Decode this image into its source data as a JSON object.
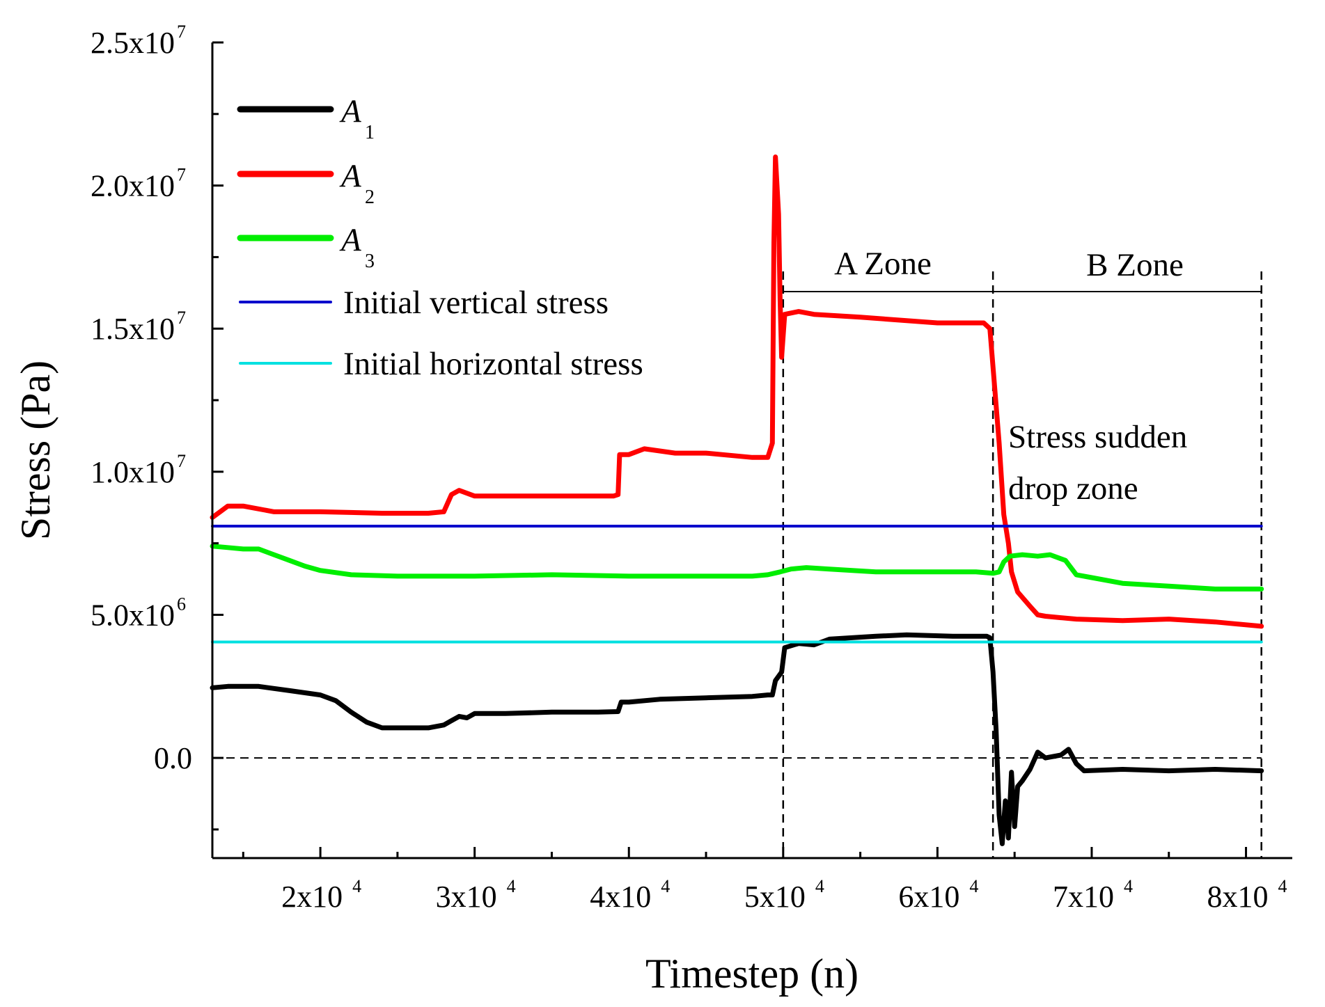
{
  "chart_data": {
    "type": "line",
    "xlabel": "Timestep (n)",
    "ylabel": "Stress (Pa)",
    "xlim": [
      13000,
      83000
    ],
    "ylim": [
      -3500000,
      25000000
    ],
    "x_ticks": [
      {
        "value": 20000,
        "mantissa": "2x10",
        "exp": "4"
      },
      {
        "value": 30000,
        "mantissa": "3x10",
        "exp": "4"
      },
      {
        "value": 40000,
        "mantissa": "4x10",
        "exp": "4"
      },
      {
        "value": 50000,
        "mantissa": "5x10",
        "exp": "4"
      },
      {
        "value": 60000,
        "mantissa": "6x10",
        "exp": "4"
      },
      {
        "value": 70000,
        "mantissa": "7x10",
        "exp": "4"
      },
      {
        "value": 80000,
        "mantissa": "8x10",
        "exp": "4"
      }
    ],
    "y_ticks": [
      {
        "value": 0,
        "mantissa": "0.0",
        "exp": ""
      },
      {
        "value": 5000000,
        "mantissa": "5.0x10",
        "exp": "6"
      },
      {
        "value": 10000000,
        "mantissa": "1.0x10",
        "exp": "7"
      },
      {
        "value": 15000000,
        "mantissa": "1.5x10",
        "exp": "7"
      },
      {
        "value": 20000000,
        "mantissa": "2.0x10",
        "exp": "7"
      },
      {
        "value": 25000000,
        "mantissa": "2.5x10",
        "exp": "7"
      }
    ],
    "series": [
      {
        "name": "A1",
        "label": "A",
        "sub": "1",
        "color": "#000000",
        "points": [
          [
            13000,
            2450000
          ],
          [
            14000,
            2500000
          ],
          [
            16000,
            2500000
          ],
          [
            18000,
            2350000
          ],
          [
            20000,
            2200000
          ],
          [
            21000,
            2000000
          ],
          [
            22000,
            1600000
          ],
          [
            23000,
            1250000
          ],
          [
            24000,
            1050000
          ],
          [
            25000,
            1050000
          ],
          [
            27000,
            1050000
          ],
          [
            28000,
            1150000
          ],
          [
            28500,
            1300000
          ],
          [
            29000,
            1450000
          ],
          [
            29500,
            1400000
          ],
          [
            30000,
            1550000
          ],
          [
            32000,
            1550000
          ],
          [
            35000,
            1600000
          ],
          [
            38000,
            1600000
          ],
          [
            39300,
            1620000
          ],
          [
            39500,
            1950000
          ],
          [
            40000,
            1950000
          ],
          [
            42000,
            2050000
          ],
          [
            45000,
            2100000
          ],
          [
            48000,
            2150000
          ],
          [
            49000,
            2200000
          ],
          [
            49300,
            2200000
          ],
          [
            49500,
            2700000
          ],
          [
            49900,
            3000000
          ],
          [
            50100,
            3850000
          ],
          [
            51000,
            4000000
          ],
          [
            52000,
            3950000
          ],
          [
            53000,
            4150000
          ],
          [
            56000,
            4250000
          ],
          [
            58000,
            4300000
          ],
          [
            61000,
            4250000
          ],
          [
            63200,
            4250000
          ],
          [
            63400,
            4200000
          ],
          [
            63600,
            3000000
          ],
          [
            63800,
            1000000
          ],
          [
            64000,
            -2000000
          ],
          [
            64200,
            -3000000
          ],
          [
            64400,
            -1500000
          ],
          [
            64600,
            -2800000
          ],
          [
            64800,
            -500000
          ],
          [
            65000,
            -2400000
          ],
          [
            65200,
            -1000000
          ],
          [
            65500,
            -800000
          ],
          [
            66000,
            -400000
          ],
          [
            66500,
            200000
          ],
          [
            67000,
            0
          ],
          [
            68000,
            100000
          ],
          [
            68500,
            300000
          ],
          [
            69000,
            -200000
          ],
          [
            69500,
            -450000
          ],
          [
            72000,
            -400000
          ],
          [
            75000,
            -450000
          ],
          [
            78000,
            -400000
          ],
          [
            81000,
            -450000
          ]
        ]
      },
      {
        "name": "A2",
        "label": "A",
        "sub": "2",
        "color": "#ff0000",
        "points": [
          [
            13000,
            8400000
          ],
          [
            13500,
            8600000
          ],
          [
            14000,
            8800000
          ],
          [
            15000,
            8800000
          ],
          [
            17000,
            8600000
          ],
          [
            20000,
            8600000
          ],
          [
            24000,
            8550000
          ],
          [
            27000,
            8550000
          ],
          [
            28000,
            8600000
          ],
          [
            28500,
            9200000
          ],
          [
            29000,
            9350000
          ],
          [
            30000,
            9150000
          ],
          [
            35000,
            9150000
          ],
          [
            39000,
            9150000
          ],
          [
            39300,
            9200000
          ],
          [
            39400,
            10600000
          ],
          [
            40000,
            10600000
          ],
          [
            41000,
            10800000
          ],
          [
            43000,
            10650000
          ],
          [
            45000,
            10650000
          ],
          [
            48000,
            10500000
          ],
          [
            49000,
            10500000
          ],
          [
            49300,
            11000000
          ],
          [
            49400,
            18000000
          ],
          [
            49500,
            21000000
          ],
          [
            49700,
            19000000
          ],
          [
            49800,
            16000000
          ],
          [
            49900,
            14000000
          ],
          [
            50100,
            15500000
          ],
          [
            51000,
            15600000
          ],
          [
            52000,
            15500000
          ],
          [
            55000,
            15400000
          ],
          [
            60000,
            15200000
          ],
          [
            63000,
            15200000
          ],
          [
            63400,
            15000000
          ],
          [
            63700,
            13000000
          ],
          [
            64000,
            11000000
          ],
          [
            64300,
            8500000
          ],
          [
            64600,
            7500000
          ],
          [
            64800,
            6500000
          ],
          [
            65200,
            5800000
          ],
          [
            66000,
            5300000
          ],
          [
            66500,
            5000000
          ],
          [
            67000,
            4950000
          ],
          [
            68000,
            4900000
          ],
          [
            69000,
            4850000
          ],
          [
            72000,
            4800000
          ],
          [
            75000,
            4850000
          ],
          [
            78000,
            4750000
          ],
          [
            81000,
            4600000
          ]
        ]
      },
      {
        "name": "A3",
        "label": "A",
        "sub": "3",
        "color": "#00ee00",
        "points": [
          [
            13000,
            7400000
          ],
          [
            14000,
            7350000
          ],
          [
            15000,
            7300000
          ],
          [
            16000,
            7300000
          ],
          [
            17000,
            7100000
          ],
          [
            18000,
            6900000
          ],
          [
            19000,
            6700000
          ],
          [
            20000,
            6550000
          ],
          [
            22000,
            6400000
          ],
          [
            25000,
            6350000
          ],
          [
            30000,
            6350000
          ],
          [
            35000,
            6400000
          ],
          [
            40000,
            6350000
          ],
          [
            45000,
            6350000
          ],
          [
            48000,
            6350000
          ],
          [
            49000,
            6400000
          ],
          [
            49800,
            6500000
          ],
          [
            50500,
            6600000
          ],
          [
            51500,
            6650000
          ],
          [
            53000,
            6600000
          ],
          [
            56000,
            6500000
          ],
          [
            60000,
            6500000
          ],
          [
            62500,
            6500000
          ],
          [
            63600,
            6450000
          ],
          [
            64000,
            6500000
          ],
          [
            64300,
            6850000
          ],
          [
            64700,
            7050000
          ],
          [
            65500,
            7100000
          ],
          [
            66500,
            7050000
          ],
          [
            67300,
            7100000
          ],
          [
            68300,
            6900000
          ],
          [
            69000,
            6400000
          ],
          [
            70000,
            6300000
          ],
          [
            72000,
            6100000
          ],
          [
            75000,
            6000000
          ],
          [
            78000,
            5900000
          ],
          [
            81000,
            5900000
          ]
        ]
      },
      {
        "name": "Initial vertical stress",
        "label": "Initial vertical stress",
        "sub": "",
        "color": "#0000cc",
        "points": [
          [
            13000,
            8100000
          ],
          [
            81000,
            8100000
          ]
        ]
      },
      {
        "name": "Initial horizontal stress",
        "label": "Initial horizontal stress",
        "sub": "",
        "color": "#00e0e0",
        "points": [
          [
            13000,
            4050000
          ],
          [
            81000,
            4050000
          ]
        ]
      }
    ],
    "reference_lines": {
      "zero_line": {
        "y": 0,
        "x_from": 13000,
        "x_to": 81000
      },
      "dividers_x": [
        50000,
        63600,
        81000
      ]
    },
    "annotations": {
      "a_zone": {
        "text": "A Zone",
        "x_from": 50000,
        "x_to": 63600
      },
      "b_zone": {
        "text": "B Zone",
        "x_from": 63600,
        "x_to": 81000
      },
      "drop_zone_line1": "Stress sudden",
      "drop_zone_line2": "drop zone"
    },
    "legend_position": "top-left"
  }
}
